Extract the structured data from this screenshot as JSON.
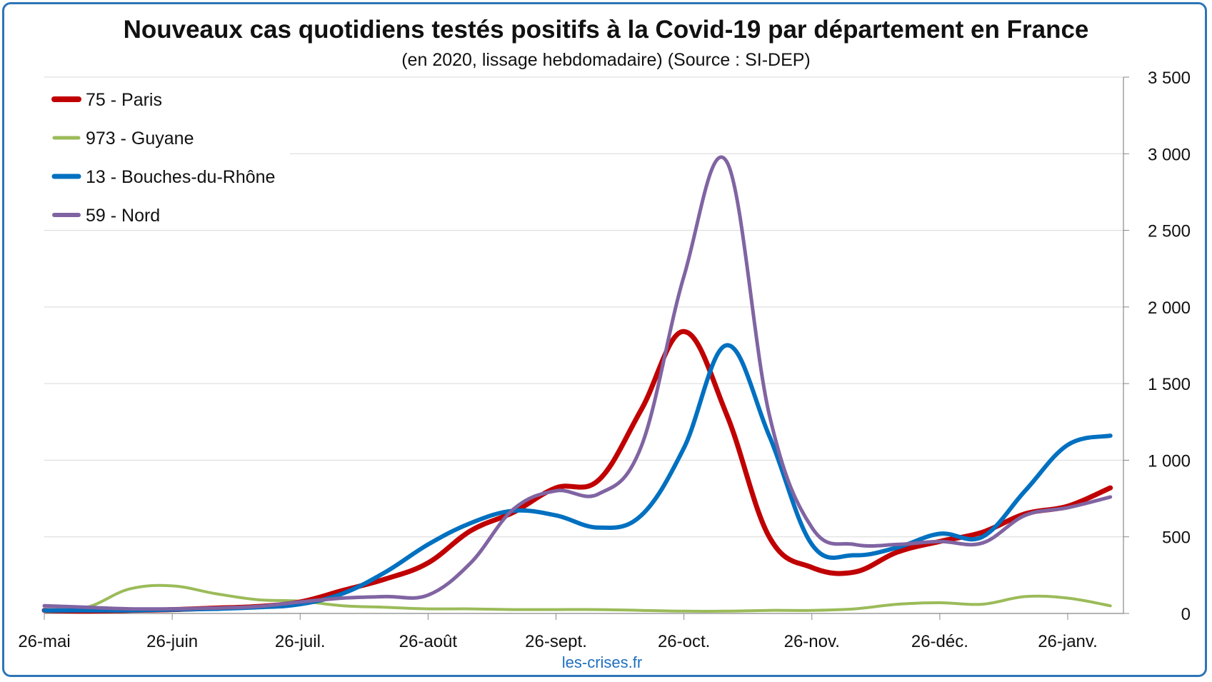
{
  "chart_data": {
    "type": "line",
    "title": "Nouveaux cas quotidiens testés positifs à la Covid-19 par département en France",
    "subtitle": "(en 2020, lissage hebdomadaire) (Source : SI-DEP)",
    "xlabel": "",
    "ylabel": "",
    "x_ticks": [
      "26-mai",
      "26-juin",
      "26-juil.",
      "26-août",
      "26-sept.",
      "26-oct.",
      "26-nov.",
      "26-déc.",
      "26-janv."
    ],
    "y_ticks": [
      "0",
      "500",
      "1 000",
      "1 500",
      "2 000",
      "2 500",
      "3 000",
      "3 500"
    ],
    "ylim": [
      0,
      3500
    ],
    "y_axis_side": "right",
    "grid": "horizontal",
    "legend_position": "top-left",
    "x": [
      "26-mai",
      "5-juin",
      "15-juin",
      "26-juin",
      "6-juil.",
      "16-juil.",
      "26-juil.",
      "5-août",
      "15-août",
      "26-août",
      "5-sept.",
      "15-sept.",
      "26-sept.",
      "6-oct.",
      "16-oct.",
      "26-oct.",
      "5-nov.",
      "15-nov.",
      "26-nov.",
      "6-déc.",
      "16-déc.",
      "26-déc.",
      "5-janv.",
      "15-janv.",
      "26-janv.",
      "3-févr."
    ],
    "series": [
      {
        "name": "75 - Paris",
        "color": "#c00000",
        "values": [
          20,
          15,
          20,
          25,
          35,
          45,
          75,
          150,
          225,
          330,
          540,
          660,
          820,
          870,
          1330,
          1840,
          1300,
          500,
          300,
          270,
          400,
          470,
          530,
          650,
          700,
          820
        ]
      },
      {
        "name": "973 - Guyane",
        "color": "#9bbb59",
        "values": [
          20,
          40,
          160,
          180,
          130,
          90,
          80,
          50,
          40,
          30,
          30,
          25,
          25,
          25,
          20,
          15,
          15,
          20,
          20,
          30,
          60,
          70,
          60,
          110,
          100,
          50
        ]
      },
      {
        "name": "13 - Bouches-du-Rhône",
        "color": "#0070c0",
        "values": [
          20,
          20,
          20,
          25,
          30,
          40,
          60,
          130,
          270,
          450,
          590,
          670,
          640,
          560,
          640,
          1080,
          1750,
          1160,
          450,
          380,
          430,
          520,
          500,
          800,
          1100,
          1160
        ]
      },
      {
        "name": "59 - Nord",
        "color": "#8064a2",
        "values": [
          50,
          40,
          30,
          30,
          35,
          45,
          75,
          100,
          110,
          120,
          330,
          680,
          800,
          780,
          1090,
          2200,
          2950,
          1300,
          560,
          450,
          450,
          470,
          460,
          640,
          690,
          760
        ]
      }
    ]
  },
  "source_label": "les-crises.fr"
}
